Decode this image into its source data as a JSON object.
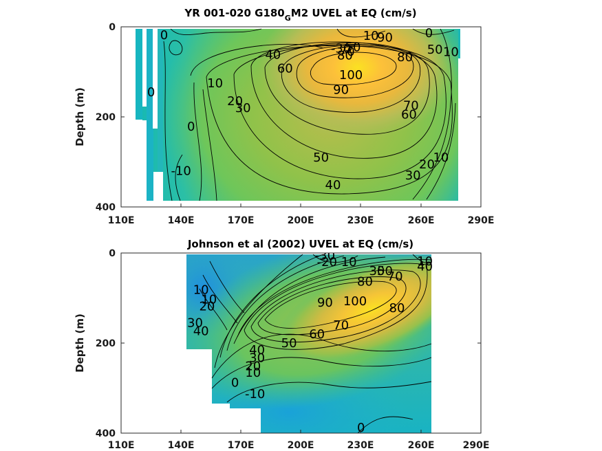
{
  "chart_data": [
    {
      "type": "contour",
      "title": "YR 001-020 G180",
      "title_subscript": "G",
      "title_suffix": "M2 UVEL at EQ (cm/s)",
      "ylabel": "Depth (m)",
      "xlim": [
        110,
        290
      ],
      "ylim": [
        0,
        400
      ],
      "y_reversed": true,
      "xticks": [
        "110E",
        "140E",
        "170E",
        "200E",
        "230E",
        "260E",
        "290E"
      ],
      "yticks": [
        "0",
        "200",
        "400"
      ],
      "grid": false,
      "colormap": "parula",
      "core": {
        "lon": 235,
        "depth": 90,
        "max_speed": 100
      },
      "contour_labels": [
        {
          "text": "0",
          "lon": 131.5,
          "depth": 18
        },
        {
          "text": "10",
          "lon": 235,
          "depth": 20
        },
        {
          "text": "90",
          "lon": 242,
          "depth": 24
        },
        {
          "text": "0",
          "lon": 264,
          "depth": 14
        },
        {
          "text": "-30",
          "lon": 220,
          "depth": 48
        },
        {
          "text": "50",
          "lon": 226,
          "depth": 45
        },
        {
          "text": "70",
          "lon": 223,
          "depth": 55
        },
        {
          "text": "80",
          "lon": 222,
          "depth": 63
        },
        {
          "text": "40",
          "lon": 186,
          "depth": 62
        },
        {
          "text": "50",
          "lon": 267,
          "depth": 50
        },
        {
          "text": "10",
          "lon": 275,
          "depth": 56
        },
        {
          "text": "80",
          "lon": 252,
          "depth": 67
        },
        {
          "text": "60",
          "lon": 192,
          "depth": 92
        },
        {
          "text": "100",
          "lon": 225,
          "depth": 107
        },
        {
          "text": "10",
          "lon": 157,
          "depth": 125
        },
        {
          "text": "90",
          "lon": 220,
          "depth": 140
        },
        {
          "text": "0",
          "lon": 125,
          "depth": 145
        },
        {
          "text": "20",
          "lon": 167,
          "depth": 165
        },
        {
          "text": "30",
          "lon": 171,
          "depth": 180
        },
        {
          "text": "70",
          "lon": 255,
          "depth": 175
        },
        {
          "text": "60",
          "lon": 254,
          "depth": 195
        },
        {
          "text": "0",
          "lon": 145,
          "depth": 221
        },
        {
          "text": "50",
          "lon": 210,
          "depth": 290
        },
        {
          "text": "10",
          "lon": 270,
          "depth": 290
        },
        {
          "text": "20",
          "lon": 263,
          "depth": 305
        },
        {
          "text": "-10",
          "lon": 140,
          "depth": 320
        },
        {
          "text": "30",
          "lon": 256,
          "depth": 330
        },
        {
          "text": "40",
          "lon": 216,
          "depth": 351
        }
      ]
    },
    {
      "type": "contour",
      "title": "Johnson et al (2002) UVEL at EQ (cm/s)",
      "ylabel": "Depth (m)",
      "xlim": [
        110,
        290
      ],
      "ylim": [
        0,
        400
      ],
      "y_reversed": true,
      "xticks": [
        "110E",
        "140E",
        "170E",
        "200E",
        "230E",
        "260E",
        "290E"
      ],
      "yticks": [
        "0",
        "200",
        "400"
      ],
      "grid": false,
      "colormap": "parula",
      "core": {
        "lon": 235,
        "depth": 125,
        "max_speed": 100
      },
      "contour_labels": [
        {
          "text": "-30",
          "lon": 212,
          "depth": 5
        },
        {
          "text": "-20",
          "lon": 213,
          "depth": 20
        },
        {
          "text": "10",
          "lon": 224,
          "depth": 20
        },
        {
          "text": "10",
          "lon": 262,
          "depth": 18
        },
        {
          "text": "30",
          "lon": 238,
          "depth": 40
        },
        {
          "text": "50",
          "lon": 242,
          "depth": 40
        },
        {
          "text": "40",
          "lon": 262,
          "depth": 30
        },
        {
          "text": "70",
          "lon": 247,
          "depth": 52
        },
        {
          "text": "80",
          "lon": 232,
          "depth": 63
        },
        {
          "text": "10",
          "lon": 150,
          "depth": 82
        },
        {
          "text": "100",
          "lon": 227,
          "depth": 107
        },
        {
          "text": "10",
          "lon": 154,
          "depth": 103
        },
        {
          "text": "90",
          "lon": 212,
          "depth": 110
        },
        {
          "text": "80",
          "lon": 248,
          "depth": 122
        },
        {
          "text": "20",
          "lon": 153,
          "depth": 118
        },
        {
          "text": "30",
          "lon": 147,
          "depth": 155
        },
        {
          "text": "70",
          "lon": 220,
          "depth": 160
        },
        {
          "text": "40",
          "lon": 150,
          "depth": 173
        },
        {
          "text": "60",
          "lon": 208,
          "depth": 180
        },
        {
          "text": "50",
          "lon": 194,
          "depth": 200
        },
        {
          "text": "40",
          "lon": 178,
          "depth": 215
        },
        {
          "text": "30",
          "lon": 178,
          "depth": 233
        },
        {
          "text": "20",
          "lon": 176,
          "depth": 251
        },
        {
          "text": "10",
          "lon": 176,
          "depth": 266
        },
        {
          "text": "0",
          "lon": 167,
          "depth": 288
        },
        {
          "text": "-10",
          "lon": 177,
          "depth": 313
        },
        {
          "text": "0",
          "lon": 230,
          "depth": 388
        }
      ]
    }
  ]
}
